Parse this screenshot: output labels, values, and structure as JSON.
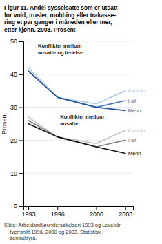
{
  "chart_data": {
    "type": "line",
    "title": "Figur 11. Andel sysselsatte som er utsatt\nfor vold, trusler, mobbing eller trakasse-\nring et par ganger i måneden eller mer,\netter kjønn. 2003. Prosent",
    "ylabel": "Prosent",
    "source": "Kilde: Arbeidsmiljøundersøkelsen 1993 og Levekår\n    tverrsnitt 1996, 2000 og 2003, Statistisk\n    sentralbyrå.",
    "annotations": [
      "Konflikter mellom\nansatte og ledelse",
      "Konflikter mellom\nansatte"
    ],
    "x": [
      1993,
      1996,
      2000,
      2003
    ],
    "xlim": [
      1992.5,
      2003.8
    ],
    "xticks": [
      1993,
      1996,
      2000,
      2003
    ],
    "ylim": [
      0,
      50
    ],
    "yticks": [
      0,
      10,
      20,
      30,
      40,
      50
    ],
    "grid": true,
    "series": [
      {
        "name": "Kvinner",
        "color": "#a8c8e8",
        "values": [
          42,
          33,
          31,
          35
        ]
      },
      {
        "name": "I alt",
        "color": "#4472c4",
        "values": [
          41,
          33,
          30,
          32
        ]
      },
      {
        "name": "Menn",
        "color": "#2255a0",
        "values": [
          41,
          33,
          30,
          29
        ]
      },
      {
        "name": "Kvinner",
        "color": "#c0c0c0",
        "values": [
          27,
          21,
          19,
          23
        ]
      },
      {
        "name": "I alt",
        "color": "#808080",
        "values": [
          26,
          21,
          18,
          20
        ]
      },
      {
        "name": "Menn",
        "color": "#111111",
        "values": [
          25,
          21,
          18,
          16
        ]
      }
    ]
  }
}
